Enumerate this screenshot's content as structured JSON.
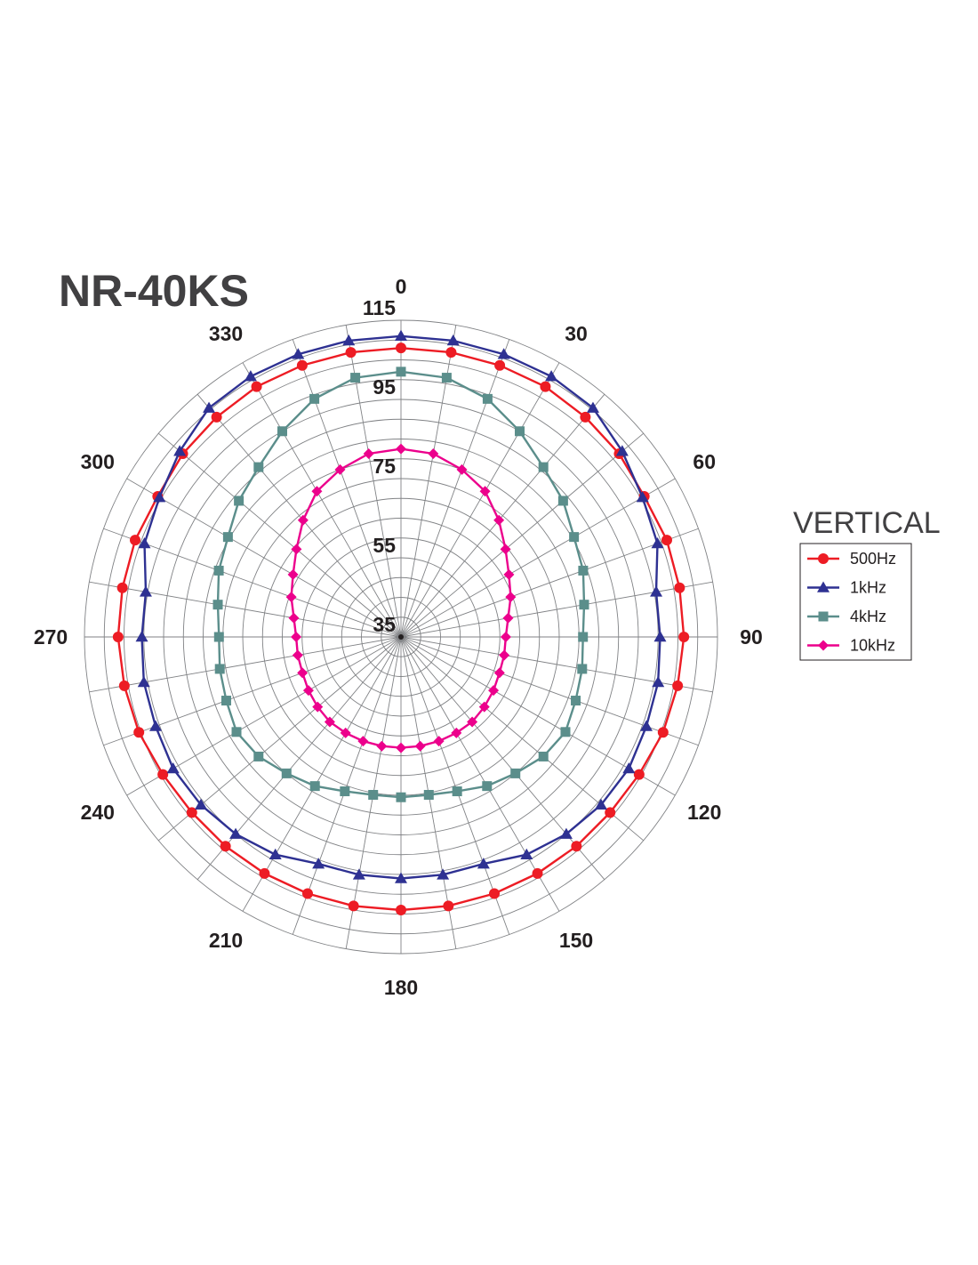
{
  "chart_data": {
    "type": "polar-line",
    "title": "NR-40KS",
    "legend_title": "VERTICAL",
    "legend_position": "right",
    "angle_step_deg": 10,
    "angle_labels": [
      "0",
      "30",
      "60",
      "90",
      "120",
      "150",
      "180",
      "210",
      "240",
      "270",
      "300",
      "330"
    ],
    "radial_range": [
      35,
      115
    ],
    "radial_labels": [
      "115",
      "95",
      "75",
      "55",
      "35"
    ],
    "radial_tick_values": [
      115,
      95,
      75,
      55,
      35
    ],
    "grid": true,
    "angles": [
      0,
      10,
      20,
      30,
      40,
      50,
      60,
      70,
      80,
      90,
      100,
      110,
      120,
      130,
      140,
      150,
      160,
      170,
      180,
      190,
      200,
      210,
      220,
      230,
      240,
      250,
      260,
      270,
      280,
      290,
      300,
      310,
      320,
      330,
      340,
      350
    ],
    "series": [
      {
        "name": "500Hz",
        "color": "#ed1c24",
        "line_color": "#ed1c24",
        "marker": "circle",
        "values": [
          108,
          108,
          108,
          108,
          107.5,
          107,
          106,
          106.5,
          106.5,
          106.5,
          106,
          105.5,
          104.5,
          104,
          104,
          104,
          104,
          104,
          104,
          104,
          104,
          104,
          104,
          104,
          104.5,
          105.5,
          106,
          106.5,
          106.5,
          106.5,
          106,
          107,
          107.5,
          108,
          108,
          108
        ]
      },
      {
        "name": "1kHz",
        "color": "#2e3192",
        "line_color": "#2e3192",
        "marker": "triangle",
        "values": [
          111,
          111,
          111,
          111,
          110.5,
          108,
          105.5,
          104,
          100.5,
          100.5,
          101,
          101,
          101.5,
          101,
          100,
          98.5,
          96,
          96,
          96,
          96,
          96,
          98.5,
          100,
          101,
          101.5,
          101,
          101,
          100.5,
          100.5,
          104,
          105.5,
          108,
          110.5,
          111,
          111,
          111
        ]
      },
      {
        "name": "4kHz",
        "color": "#5b8e8b",
        "line_color": "#5b8e8b",
        "marker": "square",
        "values": [
          102,
          101.5,
          99,
          95,
          91,
          88.5,
          85.5,
          84,
          82,
          81,
          81.5,
          82,
          83,
          82,
          80,
          78.5,
          76.5,
          75.5,
          75.5,
          75.5,
          76.5,
          78.5,
          80,
          82,
          83,
          82,
          81.5,
          81,
          82,
          84,
          85.5,
          88.5,
          91,
          95,
          99,
          101.5
        ]
      },
      {
        "name": "10kHz",
        "color": "#ec008c",
        "line_color": "#ec008c",
        "marker": "diamond",
        "values": [
          82.5,
          82,
          80,
          77.5,
          73.5,
          69.5,
          66.5,
          64.5,
          62.5,
          61.5,
          61.5,
          61.5,
          62,
          62.5,
          63,
          63,
          63,
          63,
          63,
          63,
          63,
          63,
          63,
          62.5,
          62,
          61.5,
          61.5,
          61.5,
          62.5,
          64.5,
          66.5,
          69.5,
          73.5,
          77.5,
          80,
          82
        ]
      }
    ]
  }
}
